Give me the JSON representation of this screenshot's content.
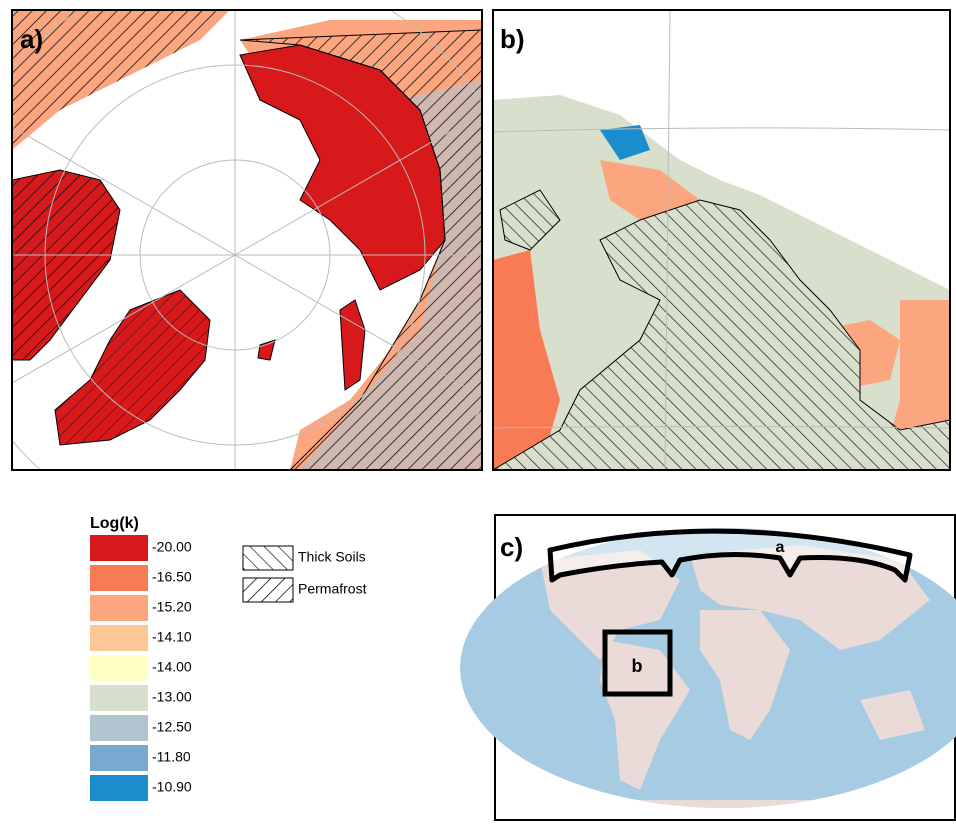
{
  "panels": {
    "a": {
      "label": "a)"
    },
    "b": {
      "label": "b)"
    },
    "c": {
      "label": "c)",
      "region_a": "a",
      "region_b": "b"
    }
  },
  "legend": {
    "title": "Log(k)",
    "items": [
      {
        "label": "-20.00",
        "color": "#d7191c"
      },
      {
        "label": "-16.50",
        "color": "#f87b55"
      },
      {
        "label": "-15.20",
        "color": "#fca680"
      },
      {
        "label": "-14.10",
        "color": "#fdc896"
      },
      {
        "label": "-14.00",
        "color": "#ffffc4"
      },
      {
        "label": "-13.00",
        "color": "#d8dfcc"
      },
      {
        "label": "-12.50",
        "color": "#b1c5d0"
      },
      {
        "label": "-11.80",
        "color": "#78a9cf"
      },
      {
        "label": "-10.90",
        "color": "#1b8dcc"
      }
    ]
  },
  "hatch_legend": [
    {
      "label": "Thick Soils"
    },
    {
      "label": "Permafrost"
    }
  ]
}
